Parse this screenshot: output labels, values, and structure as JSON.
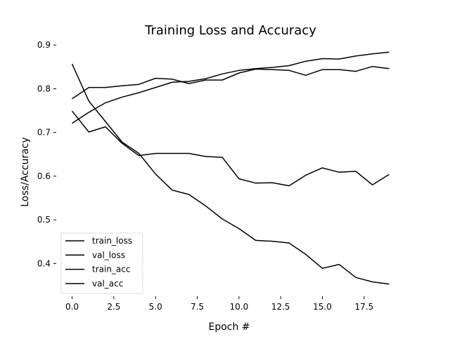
{
  "chart_data": {
    "type": "line",
    "title": "Training Loss and Accuracy",
    "xlabel": "Epoch #",
    "ylabel": "Loss/Accuracy",
    "xlim": [
      -0.95,
      19.95
    ],
    "ylim": [
      0.325,
      0.91
    ],
    "xticks": [
      0,
      2.5,
      5,
      7.5,
      10,
      12.5,
      15,
      17.5
    ],
    "xtick_labels": [
      "0.0",
      "2.5",
      "5.0",
      "7.5",
      "10.0",
      "12.5",
      "15.0",
      "17.5"
    ],
    "yticks": [
      0.4,
      0.5,
      0.6,
      0.7,
      0.8,
      0.9
    ],
    "ytick_labels": [
      "0.4",
      "0.5",
      "0.6",
      "0.7",
      "0.8",
      "0.9"
    ],
    "grid": false,
    "legend": "bottom-left",
    "x": [
      0,
      1,
      2,
      3,
      4,
      5,
      6,
      7,
      8,
      9,
      10,
      11,
      12,
      13,
      14,
      15,
      16,
      17,
      18,
      19
    ],
    "series": [
      {
        "name": "train_loss",
        "color": "#000000",
        "values": [
          0.857,
          0.772,
          0.725,
          0.678,
          0.652,
          0.605,
          0.568,
          0.558,
          0.532,
          0.502,
          0.48,
          0.453,
          0.451,
          0.447,
          0.421,
          0.389,
          0.398,
          0.368,
          0.358,
          0.353
        ]
      },
      {
        "name": "val_loss",
        "color": "#000000",
        "values": [
          0.749,
          0.701,
          0.713,
          0.675,
          0.647,
          0.652,
          0.652,
          0.652,
          0.645,
          0.643,
          0.594,
          0.584,
          0.585,
          0.578,
          0.602,
          0.619,
          0.609,
          0.611,
          0.58,
          0.604
        ]
      },
      {
        "name": "train_acc",
        "color": "#000000",
        "values": [
          0.721,
          0.746,
          0.768,
          0.781,
          0.791,
          0.803,
          0.815,
          0.817,
          0.823,
          0.834,
          0.842,
          0.846,
          0.849,
          0.853,
          0.863,
          0.869,
          0.868,
          0.875,
          0.88,
          0.884
        ]
      },
      {
        "name": "val_acc",
        "color": "#000000",
        "values": [
          0.777,
          0.803,
          0.803,
          0.807,
          0.81,
          0.824,
          0.822,
          0.812,
          0.82,
          0.82,
          0.836,
          0.845,
          0.844,
          0.842,
          0.831,
          0.844,
          0.844,
          0.84,
          0.851,
          0.846
        ]
      }
    ]
  }
}
